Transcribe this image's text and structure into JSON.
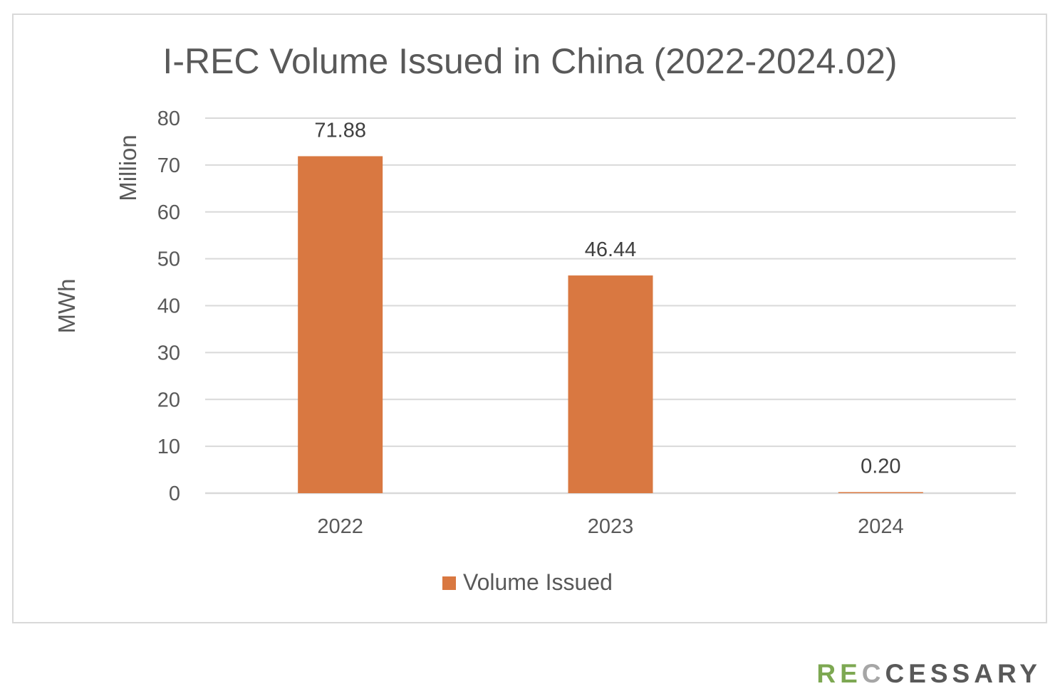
{
  "chart_data": {
    "type": "bar",
    "title": "I-REC Volume Issued in China (2022-2024.02)",
    "categories": [
      "2022",
      "2023",
      "2024"
    ],
    "series": [
      {
        "name": "Volume Issued",
        "values": [
          71.88,
          46.44,
          0.2
        ],
        "data_labels": [
          "71.88",
          "46.44",
          "0.20"
        ],
        "color": "#d97841"
      }
    ],
    "xlabel": "",
    "ylabel": "MWh",
    "y_display_unit": "Million",
    "ylim": [
      0,
      80
    ],
    "yticks": [
      0,
      10,
      20,
      30,
      40,
      50,
      60,
      70,
      80
    ],
    "grid": true,
    "legend_position": "bottom"
  },
  "colors": {
    "bar": "#d97841",
    "grid": "#d9d9d9",
    "text": "#595959",
    "brand_green": "#7da852",
    "brand_gray": "#a6a6a6",
    "brand_dark": "#595959"
  },
  "brand": {
    "parts": [
      {
        "text": "RE",
        "color": "#7da852"
      },
      {
        "text": "C",
        "color": "#a6a6a6"
      },
      {
        "text": "CESSARY",
        "color": "#595959"
      }
    ]
  }
}
